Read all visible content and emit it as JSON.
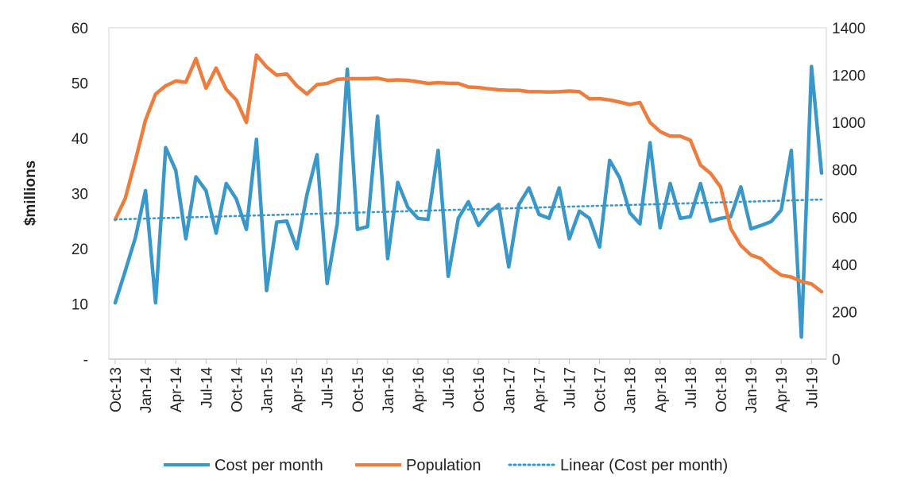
{
  "chart_data": {
    "type": "line",
    "title": "",
    "ylabel": "$millions",
    "y2label": "",
    "ylim": [
      0,
      60
    ],
    "y2lim": [
      0,
      1400
    ],
    "yticks": [
      0,
      10,
      20,
      30,
      40,
      50,
      60
    ],
    "ytick_labels": [
      "-",
      "10",
      "20",
      "30",
      "40",
      "50",
      "60"
    ],
    "y2ticks": [
      0,
      200,
      400,
      600,
      800,
      1000,
      1200,
      1400
    ],
    "y2tick_labels": [
      "0",
      "200",
      "400",
      "600",
      "800",
      "1000",
      "1200",
      "1400"
    ],
    "xtick_labels": [
      "Oct-13",
      "Jan-14",
      "Apr-14",
      "Jul-14",
      "Oct-14",
      "Jan-15",
      "Apr-15",
      "Jul-15",
      "Oct-15",
      "Jan-16",
      "Apr-16",
      "Jul-16",
      "Oct-16",
      "Jan-17",
      "Apr-17",
      "Jul-17",
      "Oct-17",
      "Jan-18",
      "Apr-18",
      "Jul-18",
      "Oct-18",
      "Jan-19",
      "Apr-19",
      "Jul-19"
    ],
    "x_months_start": "Oct-13",
    "n_points": 71,
    "legend": "bottom",
    "series": [
      {
        "name": "Cost per month",
        "axis": "left",
        "color": "#3a97c9",
        "style": "solid",
        "values": [
          10.2,
          16.0,
          22.0,
          30.5,
          10.2,
          38.3,
          34.2,
          21.8,
          33.0,
          30.5,
          22.8,
          31.8,
          29.0,
          23.5,
          39.8,
          12.4,
          24.8,
          25.0,
          20.0,
          29.8,
          37.0,
          13.7,
          24.5,
          52.5,
          23.5,
          24.0,
          44.0,
          18.2,
          32.0,
          27.5,
          25.5,
          25.3,
          37.8,
          15.0,
          25.5,
          28.5,
          24.2,
          26.5,
          28.0,
          16.7,
          28.0,
          31.0,
          26.2,
          25.5,
          31.0,
          21.8,
          26.8,
          25.5,
          20.3,
          36.0,
          32.8,
          26.5,
          24.5,
          39.2,
          23.8,
          31.8,
          25.5,
          25.8,
          31.8,
          25.0,
          25.5,
          25.8,
          31.2,
          23.6,
          24.2,
          24.9,
          27.0,
          37.8,
          4.0,
          53.0,
          33.7
        ]
      },
      {
        "name": "Population",
        "axis": "right",
        "color": "#ee7d3d",
        "style": "solid",
        "values": [
          590,
          680,
          840,
          1010,
          1120,
          1155,
          1175,
          1170,
          1270,
          1145,
          1230,
          1140,
          1095,
          1000,
          1285,
          1235,
          1200,
          1205,
          1155,
          1120,
          1160,
          1165,
          1182,
          1185,
          1185,
          1185,
          1187,
          1178,
          1180,
          1178,
          1172,
          1165,
          1168,
          1166,
          1165,
          1150,
          1148,
          1142,
          1138,
          1136,
          1136,
          1130,
          1130,
          1129,
          1130,
          1133,
          1130,
          1100,
          1101,
          1095,
          1086,
          1076,
          1084,
          1000,
          962,
          942,
          942,
          925,
          820,
          785,
          727,
          552,
          480,
          440,
          425,
          385,
          355,
          347,
          328,
          318,
          285
        ]
      },
      {
        "name": "Linear (Cost per month)",
        "axis": "left",
        "color": "#3a97c9",
        "style": "dotted",
        "values_linear": [
          25.3,
          28.9
        ]
      }
    ]
  }
}
